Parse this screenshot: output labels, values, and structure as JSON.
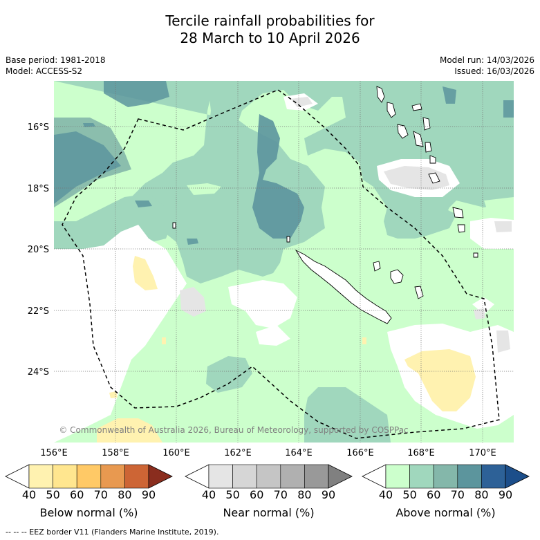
{
  "title_line1": "Tercile rainfall probabilities for",
  "title_line2": "28 March to 10 April 2026",
  "base_period": "Base period: 1981-2018",
  "model": "Model: ACCESS-S2",
  "model_run": "Model run: 14/03/2026",
  "issued": "Issued: 16/03/2026",
  "credit": "© Commonwealth of Australia 2026, Bureau of Meteorology, supported by COSPPac",
  "footer": "-- -- -- EEZ border V11 (Flanders Marine Institute, 2019).",
  "lon_ticks": [
    "156°E",
    "158°E",
    "160°E",
    "162°E",
    "164°E",
    "166°E",
    "168°E",
    "170°E"
  ],
  "lat_ticks": [
    "16°S",
    "18°S",
    "20°S",
    "22°S",
    "24°S"
  ],
  "colors": {
    "above": [
      "#ccffcc",
      "#a0d7bd",
      "#84b7aa",
      "#5c959d",
      "#2d6197",
      "#1c4e8a"
    ],
    "near": [
      "#e5e5e5",
      "#d6d6d6",
      "#c5c5c5",
      "#b0b0b0",
      "#999999",
      "#808080"
    ],
    "below": [
      "#fff2b0",
      "#ffe68f",
      "#ffc966",
      "#e89950",
      "#cd6535",
      "#a8402a",
      "#8a2d1e"
    ]
  },
  "colorbars": [
    {
      "label": "Below normal (%)",
      "ticks": [
        "40",
        "50",
        "60",
        "70",
        "80",
        "90"
      ]
    },
    {
      "label": "Near normal (%)",
      "ticks": [
        "40",
        "50",
        "60",
        "70",
        "80",
        "90"
      ]
    },
    {
      "label": "Above normal (%)",
      "ticks": [
        "40",
        "50",
        "60",
        "70",
        "80",
        "90"
      ]
    }
  ]
}
